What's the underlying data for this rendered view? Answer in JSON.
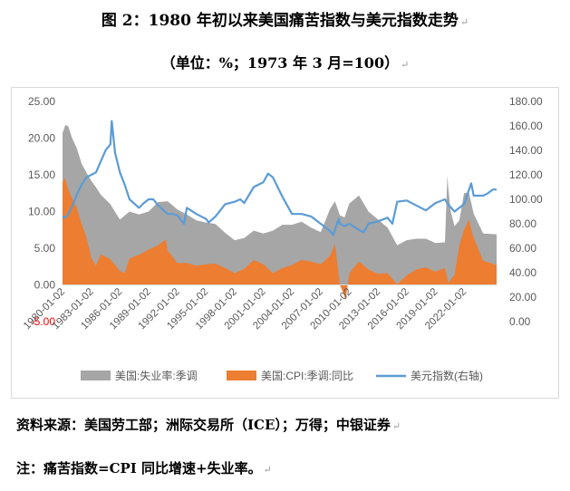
{
  "title": "图 2：1980 年初以来美国痛苦指数与美元指数走势",
  "subtitle": "（单位：%；1973 年 3 月=100）",
  "source": "资料来源：美国劳工部；洲际交易所（ICE）；万得；中银证券",
  "note": "注：痛苦指数=CPI 同比增速+失业率。",
  "paragraph_mark": "↵",
  "colors": {
    "misery_area": "#a6a6a6",
    "cpi_area": "#ed7d31",
    "usd_line": "#5b9bd5",
    "axis": "#d9d9d9"
  },
  "chart_data": {
    "type": "area",
    "x_ticks": [
      "1980-01-02",
      "1983-01-02",
      "1986-01-02",
      "1989-01-02",
      "1992-01-02",
      "1995-01-02",
      "1998-01-02",
      "2001-01-02",
      "2004-01-02",
      "2007-01-02",
      "2010-01-02",
      "2013-01-02",
      "2016-01-02",
      "2019-01-02",
      "2022-01-02"
    ],
    "y_left_ticks": [
      "-5.00",
      "0.00",
      "5.00",
      "10.00",
      "15.00",
      "20.00",
      "25.00"
    ],
    "y_right_ticks": [
      "0.00",
      "20.00",
      "40.00",
      "60.00",
      "80.00",
      "100.00",
      "120.00",
      "140.00",
      "160.00",
      "180.00"
    ],
    "y_left_range": [
      -5,
      25
    ],
    "y_right_range": [
      0,
      180
    ],
    "x_range": [
      1980,
      2025.4
    ],
    "legend_position": "bottom",
    "series": [
      {
        "name": "美国:失业率:季调",
        "kind": "area",
        "axis": "left",
        "x": [
          1980,
          1980.3,
          1980.6,
          1981,
          1981.5,
          1982,
          1982.5,
          1983,
          1983.5,
          1984,
          1985,
          1986,
          1987,
          1988,
          1989,
          1990,
          1991,
          1992,
          1993,
          1994,
          1995,
          1996,
          1997,
          1998,
          1999,
          2000,
          2001,
          2002,
          2003,
          2004,
          2005,
          2006,
          2007,
          2008,
          2008.5,
          2009,
          2009.5,
          2010,
          2011,
          2012,
          2013,
          2014,
          2015,
          2016,
          2017,
          2018,
          2019,
          2020,
          2020.25,
          2020.35,
          2020.6,
          2021,
          2021.5,
          2022,
          2022.5,
          2023,
          2024,
          2025.4
        ],
        "values": [
          20.7,
          21.8,
          21.6,
          20.0,
          18.6,
          16.5,
          15.3,
          14.2,
          13.3,
          12.3,
          11.0,
          8.9,
          10.0,
          9.6,
          10.0,
          11.3,
          11.4,
          10.3,
          9.6,
          8.8,
          8.5,
          8.3,
          7.1,
          6.1,
          6.4,
          7.4,
          7.0,
          7.4,
          8.2,
          8.2,
          8.6,
          7.8,
          7.2,
          10.4,
          11.4,
          9.5,
          9.2,
          11.1,
          12.2,
          10.0,
          8.9,
          7.8,
          5.4,
          6.1,
          6.3,
          6.3,
          5.7,
          5.8,
          14.9,
          13.2,
          10.0,
          8.0,
          8.8,
          12.5,
          12.6,
          9.7,
          7.0,
          6.9
        ]
      },
      {
        "name": "美国:CPI:季调:同比",
        "kind": "area",
        "axis": "left",
        "x": [
          1980,
          1980.25,
          1980.6,
          1981,
          1981.5,
          1982,
          1982.5,
          1983,
          1983.5,
          1984,
          1985,
          1986,
          1986.5,
          1987,
          1988,
          1989,
          1990,
          1990.8,
          1991,
          1992,
          1993,
          1994,
          1995,
          1996,
          1997,
          1998,
          1999,
          2000,
          2001,
          2002,
          2003,
          2004,
          2005,
          2006,
          2007,
          2008,
          2008.5,
          2009,
          2009.4,
          2009.6,
          2010,
          2011,
          2012,
          2013,
          2014,
          2015,
          2016,
          2017,
          2018,
          2019,
          2020,
          2020.35,
          2021,
          2021.5,
          2022,
          2022.5,
          2023,
          2024,
          2025.4
        ],
        "values": [
          13.9,
          14.6,
          13.0,
          11.8,
          10.5,
          8.3,
          6.5,
          3.7,
          2.6,
          4.2,
          3.5,
          1.9,
          1.6,
          3.6,
          4.1,
          4.8,
          5.4,
          6.2,
          4.7,
          3.0,
          3.0,
          2.6,
          2.8,
          2.9,
          2.3,
          1.6,
          2.2,
          3.4,
          2.8,
          1.6,
          2.3,
          2.7,
          3.4,
          3.2,
          2.8,
          4.0,
          5.6,
          0.0,
          -1.2,
          -2.1,
          1.6,
          3.2,
          2.1,
          1.5,
          1.6,
          0.1,
          1.3,
          2.1,
          2.4,
          1.8,
          2.3,
          0.3,
          1.4,
          5.4,
          7.5,
          8.9,
          6.4,
          3.3,
          2.7
        ]
      },
      {
        "name": "美元指数(右轴)",
        "kind": "line",
        "axis": "right",
        "x": [
          1980,
          1980.3,
          1980.6,
          1981,
          1981.5,
          1982,
          1982.5,
          1983,
          1983.5,
          1984,
          1984.5,
          1985,
          1985.15,
          1985.5,
          1986,
          1986.5,
          1987,
          1988,
          1988.5,
          1989,
          1989.5,
          1990,
          1991,
          1991.5,
          1992,
          1992.7,
          1993,
          1994,
          1995,
          1995.3,
          1996,
          1997,
          1998,
          1998.6,
          1999,
          2000,
          2001,
          2001.5,
          2002,
          2002.5,
          2003,
          2004,
          2005,
          2006,
          2007,
          2008,
          2008.3,
          2008.9,
          2009,
          2009.5,
          2010,
          2011,
          2011.5,
          2012,
          2013,
          2014,
          2014.5,
          2015,
          2016,
          2017,
          2018,
          2019,
          2020,
          2020.3,
          2021,
          2021.5,
          2022,
          2022.75,
          2023,
          2024,
          2024.5,
          2025,
          2025.4
        ],
        "values": [
          86,
          85,
          88,
          94,
          104,
          112,
          118,
          120,
          122,
          131,
          140,
          145,
          164,
          138,
          122,
          112,
          100,
          93,
          97,
          100,
          100,
          95,
          88,
          88,
          87,
          80,
          93,
          88,
          84,
          81,
          86,
          96,
          98,
          100,
          97,
          110,
          114,
          121,
          118,
          110,
          102,
          88,
          88,
          86,
          80,
          74,
          71,
          84,
          80,
          78,
          80,
          75,
          73,
          80,
          82,
          85,
          80,
          98,
          99,
          95,
          91,
          97,
          100,
          96,
          90,
          93,
          96,
          113,
          103,
          103,
          105,
          108,
          108
        ]
      }
    ]
  }
}
